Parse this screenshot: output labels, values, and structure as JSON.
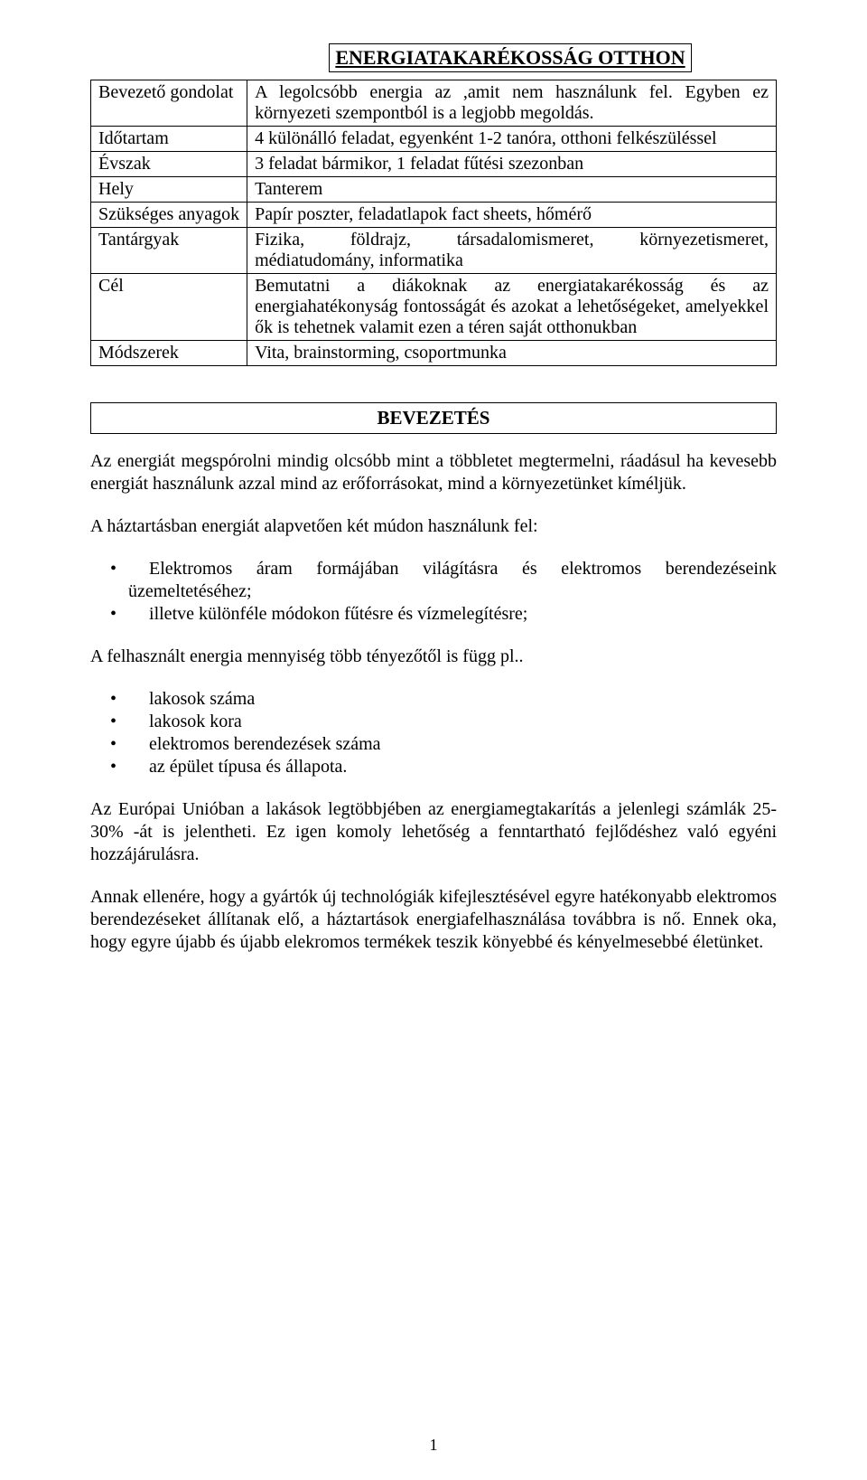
{
  "colors": {
    "text": "#000000",
    "background": "#ffffff",
    "border": "#000000"
  },
  "typography": {
    "family": "Times New Roman",
    "body_size_pt": 15,
    "title_size_pt": 16,
    "title_weight": "bold"
  },
  "title": "ENERGIATAKARÉKOSSÁG OTTHON",
  "table": {
    "rows": [
      {
        "label": "Bevezető gondolat",
        "value": "A legolcsóbb energia az ,amit nem használunk fel. Egyben ez környezeti szempontból is a legjobb megoldás."
      },
      {
        "label": "Időtartam",
        "value": "4 különálló feladat, egyenként 1-2 tanóra, otthoni felkészüléssel"
      },
      {
        "label": "Évszak",
        "value": "3 feladat bármikor, 1 feladat fűtési szezonban"
      },
      {
        "label": "Hely",
        "value": "Tanterem"
      },
      {
        "label": "Szükséges anyagok",
        "value": "Papír poszter, feladatlapok fact sheets, hőmérő"
      },
      {
        "label": "Tantárgyak",
        "value": "Fizika, földrajz, társadalomismeret, környezetismeret, médiatudomány, informatika"
      },
      {
        "label": "Cél",
        "value": "Bemutatni a diákoknak az energiatakarékosság és az energiahatékonyság fontosságát és azokat a lehetőségeket, amelyekkel ők is tehetnek valamit ezen a téren saját otthonukban"
      },
      {
        "label": "Módszerek",
        "value": "Vita, brainstorming, csoportmunka"
      }
    ]
  },
  "section_title": "BEVEZETÉS",
  "paragraphs": {
    "p1": "Az energiát megspórolni mindig olcsóbb mint a többletet megtermelni, ráadásul ha kevesebb energiát használunk azzal mind az erőforrásokat, mind a környezetünket kíméljük.",
    "p2_lead": "A háztartásban energiát alapvetően két múdon használunk fel:",
    "p2_items": [
      "Elektromos áram formájában világításra és elektromos berendezéseink üzemeltetéséhez;",
      "illetve különféle módokon fűtésre és vízmelegítésre;"
    ],
    "p3_lead": "A felhasznált energia mennyiség több tényezőtől is függ pl..",
    "p3_items": [
      "lakosok száma",
      "lakosok kora",
      "elektromos berendezések száma",
      "az épület típusa és állapota."
    ],
    "p4": "Az Európai Unióban a lakások legtöbbjében az energiamegtakarítás a jelenlegi számlák 25-30% -át is jelentheti. Ez igen komoly lehetőség a fenntartható fejlődéshez való egyéni hozzájárulásra.",
    "p5": "Annak ellenére, hogy a gyártók új technológiák kifejlesztésével egyre hatékonyabb elektromos berendezéseket állítanak elő, a háztartások energiafelhasználása továbbra is nő. Ennek oka, hogy egyre újabb és újabb elekromos termékek teszik könyebbé és kényelmesebbé életünket."
  },
  "page_number": "1"
}
